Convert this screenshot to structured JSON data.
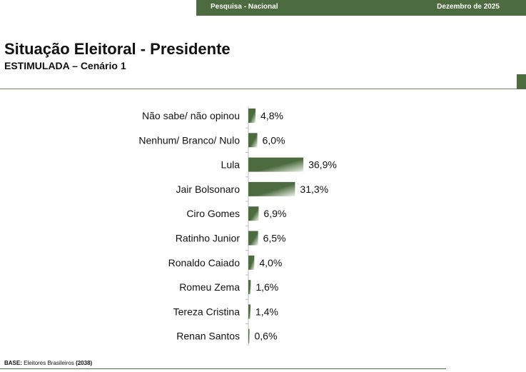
{
  "header": {
    "left_label": "Pesquisa - Nacional",
    "right_label": "Dezembro de 2025"
  },
  "title": "Situação Eleitoral - Presidente",
  "subtitle": "ESTIMULADA – Cenário 1",
  "footer": {
    "base_label": "BASE:",
    "base_text": "Eleitores Brasileiros",
    "base_count": "(2038)"
  },
  "colors": {
    "accent": "#4c6b3f",
    "bar_light": "#eef3ea"
  },
  "chart_data": {
    "type": "bar",
    "orientation": "horizontal",
    "categories": [
      "Não sabe/ não opinou",
      "Nenhum/ Branco/ Nulo",
      "Lula",
      "Jair Bolsonaro",
      "Ciro Gomes",
      "Ratinho Junior",
      "Ronaldo Caiado",
      "Romeu Zema",
      "Tereza Cristina",
      "Renan Santos"
    ],
    "values": [
      4.8,
      6.0,
      36.9,
      31.3,
      6.9,
      6.5,
      4.0,
      1.6,
      1.4,
      0.6
    ],
    "value_labels": [
      "4,8%",
      "6,0%",
      "36,9%",
      "31,3%",
      "6,9%",
      "6,5%",
      "4,0%",
      "1,6%",
      "1,4%",
      "0,6%"
    ],
    "xlim": [
      0,
      40
    ],
    "grid": false,
    "legend": "none"
  }
}
